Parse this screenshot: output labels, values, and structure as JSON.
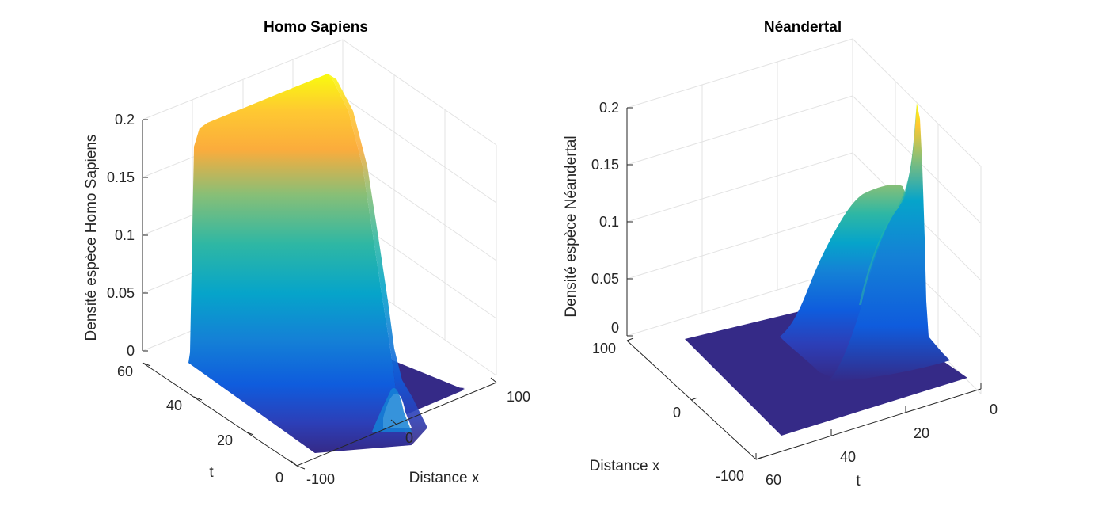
{
  "chart_data": [
    {
      "type": "surface",
      "title": "Homo Sapiens",
      "xlabel": "Distance x",
      "ylabel": "t",
      "zlabel": "Densité espèce Homo Sapiens",
      "xlim": [
        -100,
        100
      ],
      "ylim": [
        0,
        60
      ],
      "zlim": [
        0,
        0.2
      ],
      "xticks": [
        "-100",
        "0",
        "100"
      ],
      "yticks": [
        "0",
        "20",
        "40",
        "60"
      ],
      "zticks": [
        "0",
        "0.05",
        "0.1",
        "0.15",
        "0.2"
      ],
      "colormap": "parula",
      "grid": true,
      "surface_profile": {
        "description_values": "density vs distance x along a constant-time slice",
        "x": [
          -100,
          -90,
          -80,
          -60,
          -40,
          -20,
          -10,
          0,
          5,
          10,
          20,
          40,
          60,
          80,
          100
        ],
        "z": [
          0.002,
          0.08,
          0.19,
          0.195,
          0.198,
          0.2,
          0.18,
          0.012,
          0.03,
          0.002,
          0,
          0,
          0,
          0,
          0
        ]
      }
    },
    {
      "type": "surface",
      "title": "Néandertal",
      "xlabel": "Distance x",
      "ylabel": "t",
      "zlabel": "Densité espèce Néandertal",
      "xlim": [
        -100,
        100
      ],
      "ylim": [
        0,
        60
      ],
      "zlim": [
        0,
        0.2
      ],
      "xticks": [
        "-100",
        "0",
        "100"
      ],
      "yticks": [
        "0",
        "20",
        "40",
        "60"
      ],
      "zticks": [
        "0",
        "0.05",
        "0.1",
        "0.15",
        "0.2"
      ],
      "colormap": "parula",
      "grid": true,
      "peak_value": 0.2
    }
  ],
  "colors": {
    "parula": [
      "#352a87",
      "#0f5cdd",
      "#1481d6",
      "#06a4ca",
      "#2eb7a4",
      "#87bf77",
      "#d1bb59",
      "#fec832",
      "#f9fb0e"
    ]
  }
}
